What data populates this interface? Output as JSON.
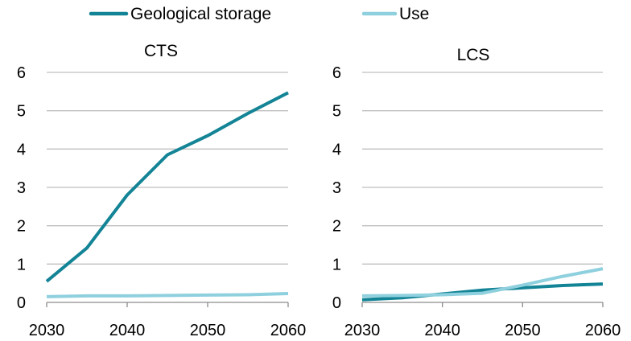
{
  "chart_data": [
    {
      "type": "line",
      "title": "CTS",
      "x": [
        2030,
        2035,
        2040,
        2045,
        2050,
        2055,
        2060
      ],
      "x_ticks": [
        "2030",
        "2040",
        "2050",
        "2060"
      ],
      "y_ticks": [
        "0",
        "1",
        "2",
        "3",
        "4",
        "5",
        "6"
      ],
      "ylim": [
        0,
        6
      ],
      "grid": true,
      "series": [
        {
          "name": "Geological storage",
          "color": "#138496",
          "values": [
            0.55,
            1.42,
            2.8,
            3.85,
            4.35,
            4.93,
            5.47
          ]
        },
        {
          "name": "Use",
          "color": "#8fd0de",
          "values": [
            0.15,
            0.17,
            0.17,
            0.18,
            0.19,
            0.2,
            0.23
          ]
        }
      ]
    },
    {
      "type": "line",
      "title": "LCS",
      "x": [
        2030,
        2035,
        2040,
        2045,
        2050,
        2055,
        2060
      ],
      "x_ticks": [
        "2030",
        "2040",
        "2050",
        "2060"
      ],
      "y_ticks": [
        "0",
        "1",
        "2",
        "3",
        "4",
        "5",
        "6"
      ],
      "ylim": [
        0,
        6
      ],
      "grid": true,
      "series": [
        {
          "name": "Geological storage",
          "color": "#138496",
          "values": [
            0.07,
            0.12,
            0.22,
            0.32,
            0.38,
            0.44,
            0.48
          ]
        },
        {
          "name": "Use",
          "color": "#8fd0de",
          "values": [
            0.17,
            0.18,
            0.2,
            0.24,
            0.45,
            0.68,
            0.88
          ]
        }
      ]
    }
  ],
  "legend": {
    "items": [
      {
        "label": "Geological storage",
        "color": "#138496"
      },
      {
        "label": "Use",
        "color": "#8fd0de"
      }
    ]
  }
}
